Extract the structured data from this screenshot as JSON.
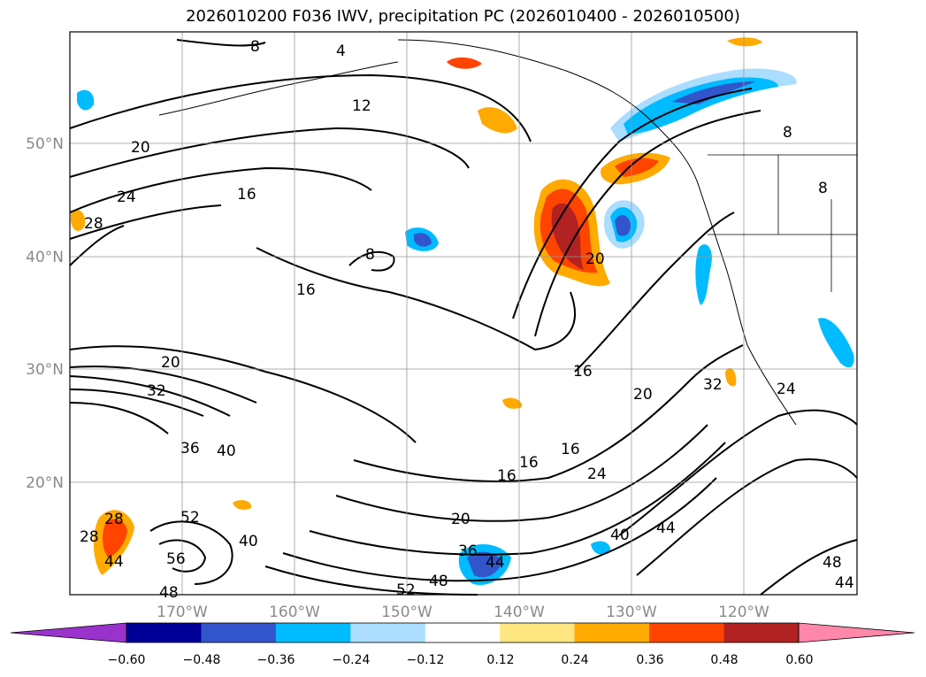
{
  "title": "2026010200 F036 IWV, precipitation PC (2026010400 - 2026010500)",
  "map": {
    "lat_labels": [
      "50°N",
      "40°N",
      "30°N",
      "20°N"
    ],
    "lon_labels": [
      "170°W",
      "160°W",
      "150°W",
      "140°W",
      "130°W",
      "120°W"
    ],
    "grid": true,
    "contour_labels": [
      "8",
      "4",
      "12",
      "20",
      "24",
      "28",
      "16",
      "8",
      "16",
      "20",
      "32",
      "36",
      "40",
      "16",
      "20",
      "16",
      "16",
      "16",
      "24",
      "20",
      "52",
      "40",
      "56",
      "48",
      "36",
      "44",
      "48",
      "52",
      "40",
      "44",
      "48",
      "44",
      "28",
      "24",
      "32",
      "8",
      "8",
      "20",
      "28",
      "44"
    ]
  },
  "colorbar": {
    "ticks": [
      "−0.60",
      "−0.48",
      "−0.36",
      "−0.24",
      "−0.12",
      "0.12",
      "0.24",
      "0.36",
      "0.48",
      "0.60"
    ],
    "colors": [
      "#9933cc",
      "#000099",
      "#3355cc",
      "#00bbff",
      "#aaddff",
      "#ffffff",
      "#ffe680",
      "#ffaa00",
      "#ff4400",
      "#b22222",
      "#ff88aa"
    ]
  }
}
